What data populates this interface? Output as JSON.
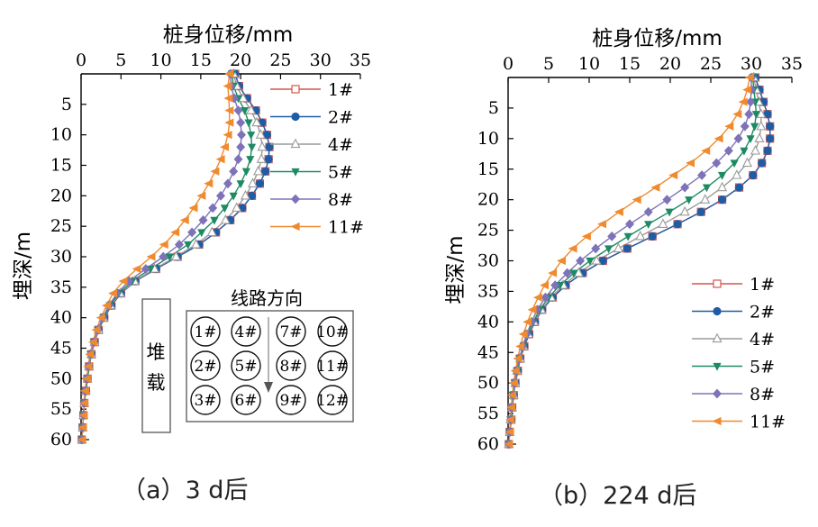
{
  "chart_data": [
    {
      "type": "line",
      "caption": "（a）3 d后",
      "xlabel": "桩身位移/mm",
      "ylabel": "埋深/m",
      "xlim": [
        0,
        35
      ],
      "ylim": [
        0,
        60
      ],
      "x_ticks": [
        "0",
        "5",
        "10",
        "15",
        "20",
        "25",
        "30",
        "35"
      ],
      "y_ticks": [
        "5",
        "10",
        "15",
        "20",
        "25",
        "30",
        "35",
        "40",
        "45",
        "50",
        "55",
        "60"
      ],
      "x_axis_position": "top",
      "y_axis_inverted": true,
      "grid": false,
      "legend_position": "top-right",
      "depth": [
        0,
        2,
        4,
        6,
        8,
        10,
        12,
        14,
        16,
        18,
        20,
        22,
        24,
        26,
        28,
        30,
        32,
        34,
        36,
        38,
        40,
        42,
        44,
        46,
        48,
        50,
        52,
        54,
        56,
        58,
        60
      ],
      "series": [
        {
          "name": "1#",
          "values": [
            19.3,
            19.8,
            20.8,
            21.9,
            22.7,
            23.3,
            23.6,
            23.5,
            23.1,
            22.4,
            21.4,
            20.2,
            18.7,
            16.9,
            14.8,
            12.1,
            9.4,
            6.8,
            5.0,
            3.8,
            2.9,
            2.2,
            1.7,
            1.3,
            1.0,
            0.8,
            0.6,
            0.4,
            0.3,
            0.2,
            0.1
          ]
        },
        {
          "name": "2#",
          "values": [
            19.3,
            19.8,
            20.8,
            21.9,
            22.7,
            23.3,
            23.6,
            23.5,
            23.1,
            22.4,
            21.4,
            20.2,
            18.7,
            16.9,
            14.8,
            12.1,
            9.4,
            6.8,
            5.0,
            3.8,
            2.9,
            2.2,
            1.7,
            1.3,
            1.0,
            0.8,
            0.6,
            0.4,
            0.3,
            0.2,
            0.1
          ]
        },
        {
          "name": "4#",
          "values": [
            19.1,
            19.5,
            20.3,
            21.3,
            22.0,
            22.5,
            22.7,
            22.6,
            22.2,
            21.5,
            20.6,
            19.5,
            18.1,
            16.4,
            14.4,
            11.9,
            9.2,
            6.7,
            4.9,
            3.7,
            2.8,
            2.2,
            1.7,
            1.3,
            1.0,
            0.8,
            0.6,
            0.4,
            0.3,
            0.2,
            0.1
          ]
        },
        {
          "name": "5#",
          "values": [
            18.9,
            19.1,
            19.7,
            20.5,
            21.0,
            21.3,
            21.4,
            21.2,
            20.7,
            20.0,
            19.1,
            18.0,
            16.7,
            15.1,
            13.4,
            11.1,
            8.7,
            6.4,
            4.7,
            3.6,
            2.8,
            2.1,
            1.6,
            1.2,
            1.0,
            0.8,
            0.6,
            0.4,
            0.3,
            0.2,
            0.1
          ]
        },
        {
          "name": "8#",
          "values": [
            18.7,
            18.8,
            19.2,
            19.7,
            20.0,
            20.1,
            20.0,
            19.7,
            19.1,
            18.4,
            17.5,
            16.5,
            15.3,
            13.9,
            12.3,
            10.3,
            8.1,
            6.0,
            4.5,
            3.5,
            2.7,
            2.1,
            1.6,
            1.2,
            0.9,
            0.7,
            0.5,
            0.4,
            0.3,
            0.2,
            0.1
          ]
        },
        {
          "name": "11#",
          "values": [
            18.6,
            18.4,
            18.5,
            18.6,
            18.6,
            18.4,
            18.0,
            17.5,
            16.8,
            16.0,
            15.1,
            14.1,
            13.0,
            11.8,
            10.4,
            8.8,
            7.0,
            5.3,
            4.0,
            3.2,
            2.5,
            1.9,
            1.5,
            1.1,
            0.9,
            0.7,
            0.5,
            0.4,
            0.3,
            0.2,
            0.1
          ]
        }
      ],
      "inset": {
        "title": "线路方向",
        "load_label": "堆载",
        "piles": [
          [
            "1#",
            "4#",
            "7#",
            "10#"
          ],
          [
            "2#",
            "5#",
            "8#",
            "11#"
          ],
          [
            "3#",
            "6#",
            "9#",
            "12#"
          ]
        ]
      }
    },
    {
      "type": "line",
      "caption": "（b）224 d后",
      "xlabel": "桩身位移/mm",
      "ylabel": "埋深/m",
      "xlim": [
        0,
        35
      ],
      "ylim": [
        0,
        60
      ],
      "x_ticks": [
        "0",
        "5",
        "10",
        "15",
        "20",
        "25",
        "30",
        "35"
      ],
      "y_ticks": [
        "5",
        "10",
        "15",
        "20",
        "25",
        "30",
        "35",
        "40",
        "45",
        "50",
        "55",
        "60"
      ],
      "x_axis_position": "top",
      "y_axis_inverted": true,
      "grid": false,
      "legend_position": "bottom-right",
      "depth": [
        0,
        2,
        4,
        6,
        8,
        10,
        12,
        14,
        16,
        18,
        20,
        22,
        24,
        26,
        28,
        30,
        32,
        34,
        36,
        38,
        40,
        42,
        44,
        46,
        48,
        50,
        52,
        54,
        56,
        58,
        60
      ],
      "series": [
        {
          "name": "1#",
          "values": [
            30.5,
            31.0,
            31.5,
            32.0,
            32.3,
            32.3,
            32.0,
            31.3,
            30.2,
            28.5,
            26.4,
            23.8,
            20.9,
            17.8,
            14.7,
            11.7,
            9.2,
            7.1,
            5.5,
            4.2,
            3.3,
            2.6,
            2.0,
            1.5,
            1.2,
            0.9,
            0.7,
            0.5,
            0.4,
            0.2,
            0.1
          ]
        },
        {
          "name": "2#",
          "values": [
            30.5,
            31.0,
            31.5,
            32.0,
            32.3,
            32.3,
            32.0,
            31.3,
            30.2,
            28.5,
            26.4,
            23.8,
            20.9,
            17.8,
            14.7,
            11.7,
            9.2,
            7.1,
            5.5,
            4.2,
            3.3,
            2.6,
            2.0,
            1.5,
            1.2,
            0.9,
            0.7,
            0.5,
            0.4,
            0.2,
            0.1
          ]
        },
        {
          "name": "4#",
          "values": [
            30.3,
            30.6,
            30.9,
            31.2,
            31.2,
            31.0,
            30.5,
            29.5,
            28.2,
            26.4,
            24.3,
            21.8,
            19.1,
            16.3,
            13.6,
            10.9,
            8.7,
            6.8,
            5.3,
            4.1,
            3.2,
            2.5,
            1.9,
            1.5,
            1.1,
            0.9,
            0.7,
            0.5,
            0.3,
            0.2,
            0.1
          ]
        },
        {
          "name": "5#",
          "values": [
            30.2,
            30.3,
            30.5,
            30.6,
            30.4,
            29.9,
            29.1,
            27.9,
            26.4,
            24.5,
            22.3,
            19.9,
            17.3,
            14.8,
            12.4,
            10.1,
            8.1,
            6.4,
            5.0,
            3.9,
            3.1,
            2.4,
            1.9,
            1.4,
            1.1,
            0.8,
            0.6,
            0.5,
            0.3,
            0.2,
            0.1
          ]
        },
        {
          "name": "8#",
          "values": [
            30.0,
            30.0,
            29.9,
            29.7,
            29.2,
            28.4,
            27.2,
            25.7,
            23.9,
            21.8,
            19.6,
            17.3,
            15.0,
            12.8,
            10.8,
            8.9,
            7.3,
            5.8,
            4.6,
            3.6,
            2.9,
            2.3,
            1.8,
            1.4,
            1.0,
            0.8,
            0.6,
            0.4,
            0.3,
            0.2,
            0.1
          ]
        },
        {
          "name": "11#",
          "values": [
            29.8,
            29.5,
            29.0,
            28.3,
            27.3,
            26.0,
            24.4,
            22.5,
            20.4,
            18.2,
            15.9,
            13.7,
            11.6,
            9.7,
            8.0,
            6.6,
            5.5,
            4.5,
            3.7,
            3.0,
            2.4,
            1.9,
            1.5,
            1.2,
            0.9,
            0.7,
            0.5,
            0.4,
            0.3,
            0.2,
            0.1
          ]
        }
      ]
    }
  ],
  "series_colors": {
    "1#": "#d3564a",
    "2#": "#1f5ca6",
    "4#": "#9a9a9a",
    "5#": "#1e8a63",
    "8#": "#7e72b8",
    "11#": "#f08a2e"
  },
  "series_markers": {
    "1#": "square-open",
    "2#": "circle",
    "4#": "triangle-up-open",
    "5#": "triangle-down",
    "8#": "diamond",
    "11#": "triangle-left"
  }
}
